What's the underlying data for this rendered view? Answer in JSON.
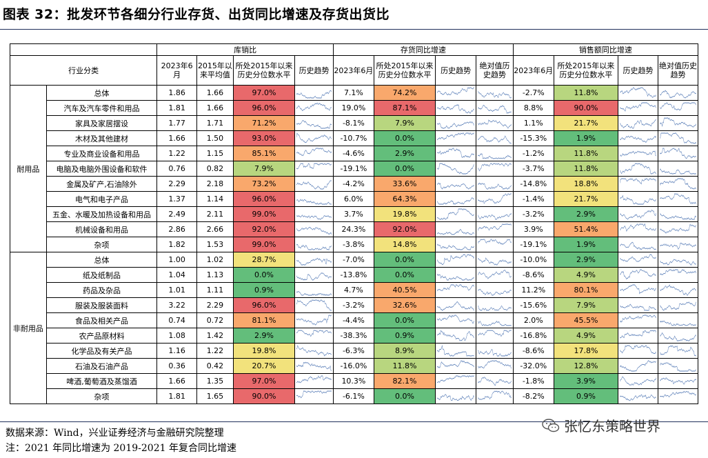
{
  "title": "图表 32：批发环节各细分行业存货、出货同比增速及存货出货比",
  "headers": {
    "group1": "库销比",
    "group2": "存货同比增速",
    "group3": "销售额同比增速",
    "industry": "行业分类",
    "sub1": [
      "2023年6月",
      "2015年以来平均值",
      "所处2015年以来历史分位数水平",
      "历史趋势"
    ],
    "sub2": [
      "2023年6月",
      "所处2015年以来历史分位数水平",
      "历史趋势",
      "绝对值历史趋势"
    ],
    "sub3": [
      "2023年6月",
      "所处2015年以来历史分位数水平",
      "历史趋势",
      "绝对值历史趋势"
    ]
  },
  "groups": [
    {
      "name": "耐用品",
      "rows": [
        {
          "cat": "总体",
          "a": "1.86",
          "b": "1.66",
          "c": "97.0%",
          "d": "7.1%",
          "e": "74.2%",
          "f": "-2.7%",
          "g": "11.8%"
        },
        {
          "cat": "汽车及汽车零件和用品",
          "a": "1.81",
          "b": "1.66",
          "c": "96.0%",
          "d": "19.0%",
          "e": "87.1%",
          "f": "8.8%",
          "g": "90.0%"
        },
        {
          "cat": "家具及家居摆设",
          "a": "1.77",
          "b": "1.71",
          "c": "71.2%",
          "d": "-8.1%",
          "e": "7.9%",
          "f": "1.1%",
          "g": "21.7%"
        },
        {
          "cat": "木材及其他建材",
          "a": "1.66",
          "b": "1.50",
          "c": "93.0%",
          "d": "-10.7%",
          "e": "0.0%",
          "f": "-15.3%",
          "g": "1.9%"
        },
        {
          "cat": "专业及商业设备和用品",
          "a": "1.22",
          "b": "1.15",
          "c": "85.1%",
          "d": "-4.6%",
          "e": "2.9%",
          "f": "-1.2%",
          "g": "11.8%"
        },
        {
          "cat": "电脑及电脑外围设备和软件",
          "a": "0.76",
          "b": "0.82",
          "c": "7.9%",
          "d": "-19.1%",
          "e": "0.0%",
          "f": "-3.7%",
          "g": "11.8%"
        },
        {
          "cat": "金属及矿产,石油除外",
          "a": "2.29",
          "b": "2.18",
          "c": "73.2%",
          "d": "-4.2%",
          "e": "33.6%",
          "f": "-14.8%",
          "g": "18.8%"
        },
        {
          "cat": "电气和电子产品",
          "a": "1.37",
          "b": "1.14",
          "c": "96.0%",
          "d": "6.0%",
          "e": "64.3%",
          "f": "-1.4%",
          "g": "21.7%"
        },
        {
          "cat": "五金、水暖及加热设备和用品",
          "a": "2.49",
          "b": "2.11",
          "c": "99.0%",
          "d": "3.7%",
          "e": "19.8%",
          "f": "-3.2%",
          "g": "2.9%"
        },
        {
          "cat": "机械设备和用品",
          "a": "2.86",
          "b": "2.66",
          "c": "92.0%",
          "d": "24.3%",
          "e": "92.0%",
          "f": "3.9%",
          "g": "51.4%"
        },
        {
          "cat": "杂项",
          "a": "1.82",
          "b": "1.53",
          "c": "99.0%",
          "d": "-3.8%",
          "e": "14.8%",
          "f": "-19.1%",
          "g": "1.9%"
        }
      ]
    },
    {
      "name": "非耐用品",
      "rows": [
        {
          "cat": "总体",
          "a": "1.00",
          "b": "1.02",
          "c": "28.7%",
          "d": "-7.0%",
          "e": "0.0%",
          "f": "-10.0%",
          "g": "2.9%"
        },
        {
          "cat": "纸及纸制品",
          "a": "1.04",
          "b": "1.13",
          "c": "0.0%",
          "d": "-13.8%",
          "e": "0.0%",
          "f": "-8.6%",
          "g": "4.9%"
        },
        {
          "cat": "药品及杂品",
          "a": "1.01",
          "b": "1.11",
          "c": "0.9%",
          "d": "4.7%",
          "e": "40.5%",
          "f": "11.2%",
          "g": "80.1%"
        },
        {
          "cat": "服装及服装面料",
          "a": "3.22",
          "b": "2.29",
          "c": "96.0%",
          "d": "-3.2%",
          "e": "32.6%",
          "f": "-15.6%",
          "g": "7.9%"
        },
        {
          "cat": "食品及相关产品",
          "a": "0.74",
          "b": "0.72",
          "c": "81.1%",
          "d": "-4.4%",
          "e": "0.0%",
          "f": "2.0%",
          "g": "45.5%"
        },
        {
          "cat": "农产品原材料",
          "a": "1.08",
          "b": "1.42",
          "c": "2.9%",
          "d": "-38.3%",
          "e": "0.9%",
          "f": "-16.8%",
          "g": "4.9%"
        },
        {
          "cat": "化学品及有关产品",
          "a": "1.16",
          "b": "1.22",
          "c": "19.8%",
          "d": "-6.3%",
          "e": "8.9%",
          "f": "-8.6%",
          "g": "17.8%"
        },
        {
          "cat": "石油及石油产品",
          "a": "0.36",
          "b": "0.42",
          "c": "20.7%",
          "d": "-16.0%",
          "e": "11.8%",
          "f": "-32.0%",
          "g": "12.8%"
        },
        {
          "cat": "啤酒,葡萄酒及蒸馏酒",
          "a": "1.66",
          "b": "1.35",
          "c": "97.0%",
          "d": "10.3%",
          "e": "82.1%",
          "f": "-1.8%",
          "g": "3.9%"
        },
        {
          "cat": "杂项",
          "a": "1.81",
          "b": "1.65",
          "c": "90.0%",
          "d": "-6.1%",
          "e": "0.0%",
          "f": "-8.2%",
          "g": "0.9%"
        }
      ]
    }
  ],
  "source": "数据来源：Wind，兴业证券经济与金融研究院整理",
  "note": "注：2021 年同比增速为 2019-2021 年复合同比增速",
  "watermark": "张忆东策略世界",
  "colors": {
    "red": "#e8696b",
    "orange": "#f9a86c",
    "yellow": "#f2e27c",
    "lightgreen": "#b8d67f",
    "green": "#63be7b",
    "line": "#5b7fb8"
  }
}
